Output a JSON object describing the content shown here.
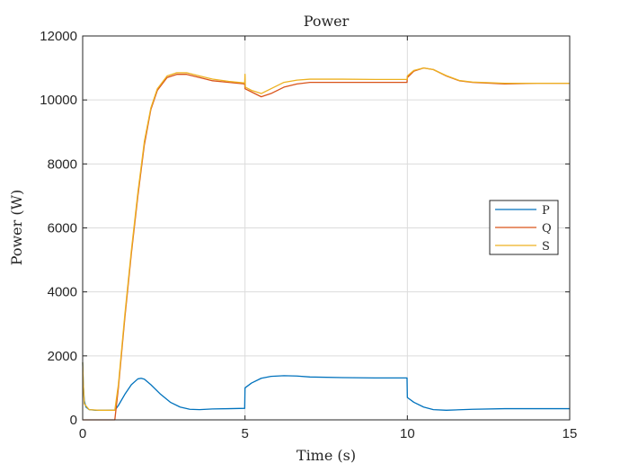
{
  "chart_data": {
    "type": "line",
    "title": "Power",
    "xlabel": "Time (s)",
    "ylabel": "Power (W)",
    "xlim": [
      0,
      15
    ],
    "ylim": [
      0,
      12000
    ],
    "xticks": [
      0,
      5,
      10,
      15
    ],
    "yticks": [
      0,
      2000,
      4000,
      6000,
      8000,
      10000,
      12000
    ],
    "grid": true,
    "legend_position": "right",
    "series": [
      {
        "name": "P",
        "color": "#0072bd",
        "x": [
          0,
          0.02,
          0.05,
          0.1,
          0.2,
          0.4,
          0.7,
          1.0,
          1.1,
          1.3,
          1.5,
          1.7,
          1.8,
          1.9,
          2.1,
          2.4,
          2.7,
          3.0,
          3.3,
          3.6,
          4.0,
          4.5,
          4.99,
          5.0,
          5.2,
          5.5,
          5.8,
          6.2,
          6.6,
          7.0,
          8.0,
          9.0,
          9.99,
          10.0,
          10.2,
          10.5,
          10.8,
          11.2,
          12.0,
          13.0,
          14.0,
          15.0
        ],
        "y": [
          1800,
          1100,
          600,
          400,
          320,
          300,
          300,
          310,
          450,
          800,
          1100,
          1280,
          1300,
          1270,
          1100,
          800,
          550,
          400,
          330,
          320,
          340,
          350,
          360,
          1000,
          1150,
          1300,
          1360,
          1380,
          1370,
          1340,
          1320,
          1310,
          1310,
          700,
          550,
          400,
          320,
          300,
          330,
          350,
          350,
          350
        ]
      },
      {
        "name": "Q",
        "color": "#d95319",
        "x": [
          0,
          0.02,
          0.05,
          0.2,
          0.5,
          0.8,
          0.99,
          1.1,
          1.3,
          1.5,
          1.7,
          1.9,
          2.1,
          2.3,
          2.6,
          2.9,
          3.2,
          3.6,
          4.0,
          4.5,
          4.99,
          5.0,
          5.2,
          5.5,
          5.8,
          6.2,
          6.6,
          7.0,
          8.0,
          9.0,
          9.99,
          10.0,
          10.2,
          10.5,
          10.8,
          11.2,
          11.6,
          12.0,
          13.0,
          14.0,
          15.0
        ],
        "y": [
          0,
          0,
          0,
          0,
          0,
          0,
          0,
          1000,
          3200,
          5200,
          7000,
          8600,
          9700,
          10300,
          10700,
          10800,
          10800,
          10700,
          10600,
          10550,
          10500,
          10350,
          10250,
          10100,
          10200,
          10400,
          10500,
          10550,
          10550,
          10550,
          10550,
          10700,
          10900,
          11000,
          10950,
          10750,
          10600,
          10550,
          10500,
          10520,
          10520
        ]
      },
      {
        "name": "S",
        "color": "#edb120",
        "x": [
          0,
          0.02,
          0.05,
          0.2,
          0.5,
          0.8,
          0.99,
          1.1,
          1.3,
          1.5,
          1.7,
          1.9,
          2.1,
          2.3,
          2.6,
          2.9,
          3.2,
          3.6,
          4.0,
          4.5,
          4.99,
          5.0,
          5.01,
          5.2,
          5.5,
          5.8,
          6.2,
          6.6,
          7.0,
          8.0,
          9.0,
          9.99,
          10.0,
          10.2,
          10.5,
          10.8,
          11.2,
          11.6,
          12.0,
          13.0,
          14.0,
          15.0
        ],
        "y": [
          1800,
          1100,
          500,
          320,
          300,
          300,
          300,
          1100,
          3300,
          5300,
          7100,
          8700,
          9750,
          10350,
          10750,
          10850,
          10850,
          10750,
          10650,
          10580,
          10530,
          10800,
          10400,
          10300,
          10200,
          10350,
          10550,
          10620,
          10650,
          10650,
          10640,
          10640,
          10750,
          10920,
          11000,
          10950,
          10760,
          10610,
          10560,
          10520,
          10520,
          10520
        ]
      }
    ]
  }
}
